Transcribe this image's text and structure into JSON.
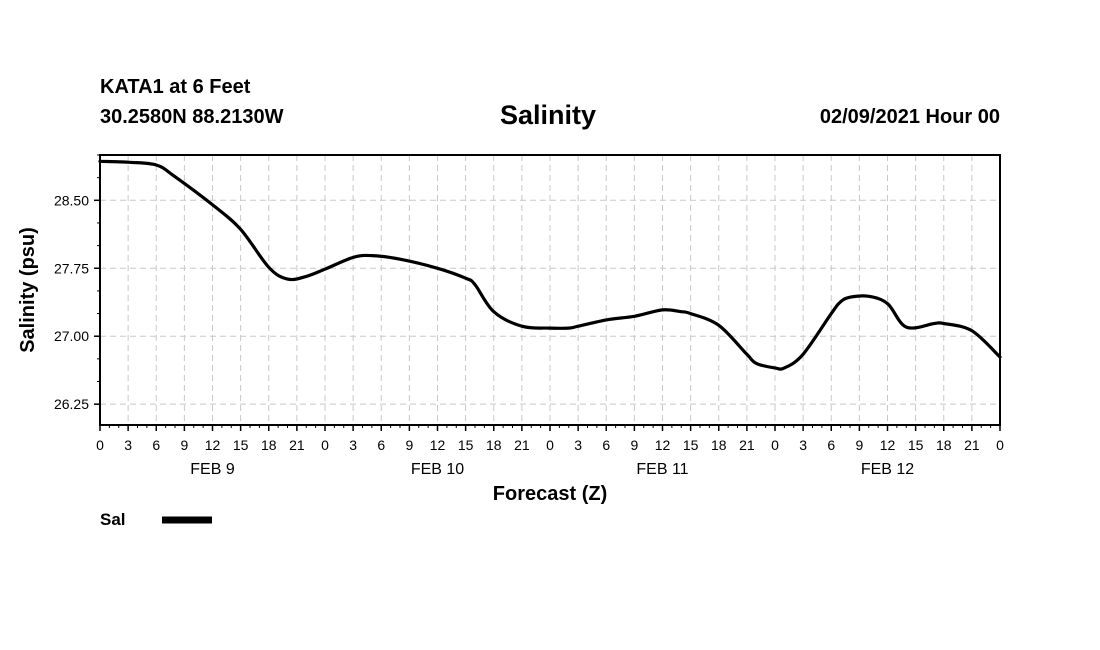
{
  "header": {
    "station": "KATA1 at 6 Feet",
    "coords": "30.2580N 88.2130W",
    "title": "Salinity",
    "timestamp": "02/09/2021 Hour 00"
  },
  "colors": {
    "line": "#000000",
    "grid": "#c8c8c8",
    "frame": "#000000"
  },
  "chart_data": {
    "type": "line",
    "title": "Salinity",
    "xlabel": "Forecast (Z)",
    "ylabel": "Salinity (psu)",
    "xlim": [
      0,
      96
    ],
    "ylim": [
      26.02,
      29.0
    ],
    "yticks": [
      26.25,
      27.0,
      27.75,
      28.5
    ],
    "ytick_labels": [
      "26.25",
      "27.00",
      "27.75",
      "28.50"
    ],
    "x_tick_hours": [
      0,
      3,
      6,
      9,
      12,
      15,
      18,
      21,
      24,
      27,
      30,
      33,
      36,
      39,
      42,
      45,
      48,
      51,
      54,
      57,
      60,
      63,
      66,
      69,
      72,
      75,
      78,
      81,
      84,
      87,
      90,
      93,
      96
    ],
    "x_tick_labels": [
      "0",
      "3",
      "6",
      "9",
      "12",
      "15",
      "18",
      "21",
      "0",
      "3",
      "6",
      "9",
      "12",
      "15",
      "18",
      "21",
      "0",
      "3",
      "6",
      "9",
      "12",
      "15",
      "18",
      "21",
      "0",
      "3",
      "6",
      "9",
      "12",
      "15",
      "18",
      "21",
      "0"
    ],
    "day_labels": [
      {
        "label": "FEB 9",
        "hour": 12
      },
      {
        "label": "FEB 10",
        "hour": 36
      },
      {
        "label": "FEB 11",
        "hour": 60
      },
      {
        "label": "FEB 12",
        "hour": 84
      }
    ],
    "series": [
      {
        "name": "Sal",
        "x": [
          0,
          3,
          6,
          8,
          12,
          15,
          18,
          20,
          22,
          24,
          27,
          29,
          32,
          36,
          39,
          40,
          42,
          45,
          48,
          50,
          51,
          54,
          57,
          60,
          62,
          63,
          66,
          69,
          70,
          72,
          73,
          75,
          78,
          79,
          80,
          82,
          84,
          86,
          89,
          90,
          93,
          96
        ],
        "y": [
          28.93,
          28.92,
          28.89,
          28.76,
          28.45,
          28.18,
          27.76,
          27.63,
          27.66,
          27.74,
          27.87,
          27.89,
          27.85,
          27.75,
          27.64,
          27.57,
          27.27,
          27.11,
          27.09,
          27.09,
          27.11,
          27.18,
          27.22,
          27.29,
          27.27,
          27.25,
          27.12,
          26.8,
          26.7,
          26.65,
          26.65,
          26.8,
          27.25,
          27.38,
          27.43,
          27.44,
          27.36,
          27.1,
          27.14,
          27.14,
          27.06,
          26.77
        ]
      }
    ]
  },
  "legend": {
    "label": "Sal"
  }
}
